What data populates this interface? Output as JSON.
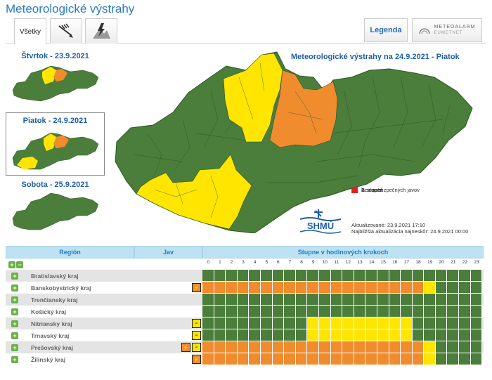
{
  "app_title": "Meteorologické výstrahy",
  "tabs": {
    "all": "Všetky",
    "wind_icon": "wind-icon",
    "thunder_icon": "lightning-icon",
    "legenda": "Legenda",
    "meteoalarm": "METEOALARM",
    "meteoalarm_sub": "EUMETNET"
  },
  "days": [
    {
      "label": "Štvrtok - 23.9.2021"
    },
    {
      "label": "Piatok - 24.9.2021"
    },
    {
      "label": "Sobota - 25.9.2021"
    }
  ],
  "map_title": "Meteorologické výstrahy na 24.9.2021 - Piatok",
  "legend": [
    {
      "label": "Bez nebezpečných javov",
      "color": "#4b7d3b"
    },
    {
      "label": "1. stupeň",
      "color": "#ffe500"
    },
    {
      "label": "2. stupeň",
      "color": "#f08b2e"
    },
    {
      "label": "3. stupeň",
      "color": "#e02020"
    }
  ],
  "updated": "Aktualizované: 23.9.2021 17:10",
  "next_update": "Najbližšia aktualizácia najneskôr: 24.9.2021 00:00",
  "logo_text": "SHMÚ",
  "table": {
    "col_region": "Región",
    "col_jav": "Jav",
    "col_steps": "Stupne v hodinových krokoch",
    "hours": [
      "0",
      "1",
      "2",
      "3",
      "4",
      "5",
      "6",
      "7",
      "8",
      "9",
      "10",
      "11",
      "12",
      "13",
      "14",
      "15",
      "16",
      "17",
      "18",
      "19",
      "20",
      "21",
      "22",
      "23"
    ],
    "rows": [
      {
        "name": "Bratislavský kraj",
        "icons": [],
        "cells": "GGGGGGGGGGGGGGGGGGGGGGGG"
      },
      {
        "name": "Banskobystrický kraj",
        "icons": [
          "or"
        ],
        "cells": "OOOOOOOOOOOOOOOOOOOYGGGG"
      },
      {
        "name": "Trenčiansky kraj",
        "icons": [],
        "cells": "GGGGGGGGGGGGGGGGGGGGGGGG"
      },
      {
        "name": "Košický kraj",
        "icons": [],
        "cells": "GGGGGGGGGGGGGGGGGGGGGGGG"
      },
      {
        "name": "Nitriansky kraj",
        "icons": [
          "ye"
        ],
        "cells": "GGGGGGGGGYYYYYYYYYGGGGGG"
      },
      {
        "name": "Trnavský kraj",
        "icons": [
          "ye"
        ],
        "cells": "GGGGGGGGGYYYYYYYYYGGGGGG"
      },
      {
        "name": "Prešovský kraj",
        "icons": [
          "or",
          "ye"
        ],
        "cells": "OOOOOOOOOOOOOOOOOOOYGGGG"
      },
      {
        "name": "Žilinský kraj",
        "icons": [
          "or"
        ],
        "cells": "OOOOOOOOOOOOOOOOOOOYGGGG"
      }
    ]
  }
}
